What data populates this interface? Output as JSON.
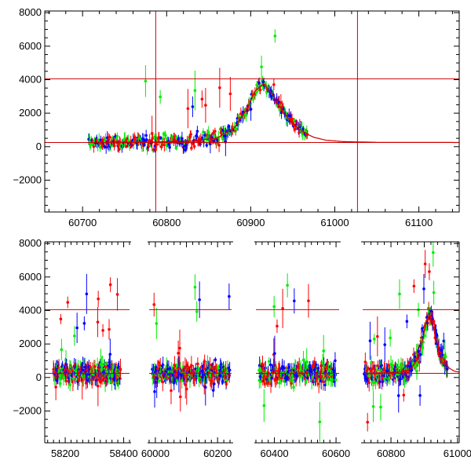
{
  "colors": {
    "red": "#ff0000",
    "green": "#00ee00",
    "blue": "#0000ff",
    "reference_line": "#cc0000",
    "frame": "#000000"
  },
  "chart_data": [
    {
      "type": "scatter",
      "title": "",
      "xlabel": "",
      "ylabel": "",
      "xlim": [
        60655,
        61148
      ],
      "ylim": [
        -3900,
        8100
      ],
      "grid": false,
      "legend": "none",
      "x_ticks": [
        60700,
        60800,
        60900,
        61000,
        61100
      ],
      "y_ticks": [
        -2000,
        0,
        2000,
        4000,
        6000,
        8000
      ],
      "x_tick_labels": [
        "60700",
        "60800",
        "60900",
        "61000",
        "61100"
      ],
      "y_tick_labels": [
        "−2000",
        "0",
        "2000",
        "4000",
        "6000",
        "8000"
      ],
      "reference_lines": {
        "horizontal": [
          4050,
          250
        ],
        "vertical": [
          61027,
          60787
        ]
      },
      "model_curve": {
        "x": [
          60730,
          60780,
          60830,
          60860,
          60880,
          60895,
          60905,
          60915,
          60925,
          60935,
          60945,
          60955,
          60965,
          60975,
          60990,
          61010,
          61050,
          61148
        ],
        "y": [
          250,
          270,
          330,
          520,
          1100,
          2200,
          3300,
          3750,
          3200,
          2350,
          1650,
          1150,
          800,
          560,
          380,
          300,
          260,
          250
        ]
      },
      "series": [
        {
          "color": "red",
          "error_bars": true,
          "x_range": [
            60705,
            60970
          ],
          "peak_x": 60915,
          "peak_y": 3800
        },
        {
          "color": "green",
          "error_bars": true,
          "x_range": [
            60705,
            60970
          ],
          "peak_x": 60915,
          "peak_y": 3800
        },
        {
          "color": "blue",
          "error_bars": true,
          "x_range": [
            60705,
            60970
          ],
          "peak_x": 60915,
          "peak_y": 3800
        }
      ]
    },
    {
      "type": "scatter",
      "title": "",
      "xlabel": "",
      "ylabel": "",
      "axis_break": true,
      "xlim": [
        58130,
        61005
      ],
      "ylim": [
        -3900,
        8100
      ],
      "grid": false,
      "legend": "none",
      "x_ticks": [
        58200,
        58400,
        60000,
        60200,
        60400,
        60600,
        60800,
        61000
      ],
      "y_ticks": [
        -2000,
        0,
        2000,
        4000,
        6000,
        8000
      ],
      "x_tick_labels": [
        "58200",
        "58400",
        "60000",
        "60200",
        "60400",
        "60600",
        "60800",
        "61000"
      ],
      "y_tick_labels": [
        "−2000",
        "0",
        "2000",
        "4000",
        "6000",
        "8000"
      ],
      "segments": [
        {
          "x_range": [
            58130,
            58420
          ]
        },
        {
          "x_range": [
            59980,
            60245
          ]
        },
        {
          "x_range": [
            60340,
            60610
          ]
        },
        {
          "x_range": [
            60715,
            61005
          ]
        }
      ],
      "reference_lines": {
        "horizontal": [
          4050,
          250
        ]
      },
      "observing_seasons": [
        {
          "x_range": [
            58160,
            58390
          ]
        },
        {
          "x_range": [
            59990,
            60240
          ]
        },
        {
          "x_range": [
            60350,
            60600
          ]
        },
        {
          "x_range": [
            60720,
            60970
          ]
        }
      ],
      "series": [
        {
          "color": "red",
          "error_bars": true
        },
        {
          "color": "green",
          "error_bars": true
        },
        {
          "color": "blue",
          "error_bars": true
        }
      ]
    }
  ]
}
